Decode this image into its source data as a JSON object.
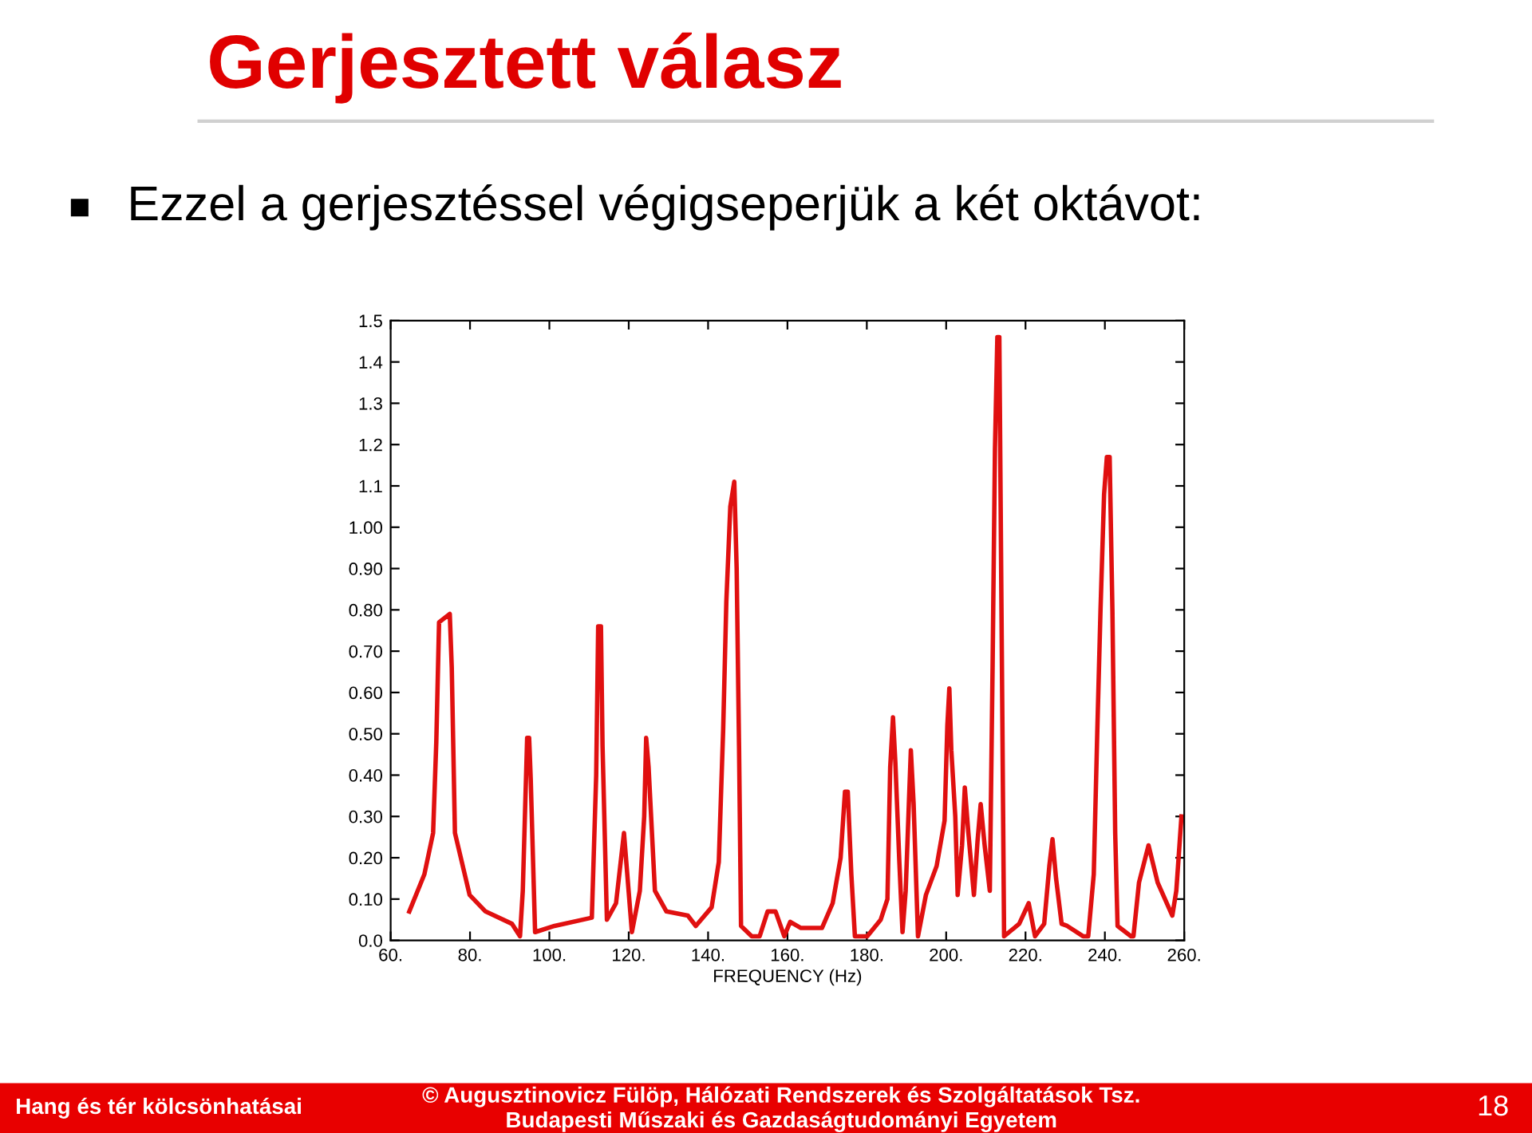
{
  "chart_data": {
    "type": "line",
    "title": "Gerjesztett válasz",
    "subtitle": "Ezzel a gerjesztéssel végigseperjük a két oktávot:",
    "xlabel": "FREQUENCY (Hz)",
    "annotations": [
      "Hang és tér kölcsönhatásai",
      "© Augusztinovicz Fülöp, Hálózati Rendszerek és Szolgáltatások Tsz.",
      "Budapesti Műszaki és Gazdaságtudományi Egyetem",
      "18"
    ],
    "series": [
      {
        "color": "#e01010",
        "x": [
          64.7,
          68.5,
          70.7,
          71.5,
          72.2,
          74.9,
          75.4,
          76.2,
          79.9,
          83.9,
          90.6,
          92.6,
          93.3,
          94.4,
          94.9,
          95.3,
          96.4,
          101.3,
          110.7,
          111.8,
          112.3,
          113.0,
          113.4,
          114.5,
          116.8,
          118.8,
          120.8,
          122.8,
          123.9,
          124.4,
          125.0,
          126.6,
          129.5,
          134.9,
          136.9,
          140.9,
          142.7,
          143.8,
          144.6,
          145.6,
          146.6,
          147.2,
          147.8,
          148.3,
          151.0,
          153.0,
          155.0,
          157.0,
          159.2,
          160.7,
          163.4,
          168.7,
          171.4,
          173.4,
          174.5,
          175.2,
          176.1,
          177.0,
          180.1,
          183.5,
          185.2,
          185.9,
          186.6,
          187.2,
          188.2,
          189.0,
          189.8,
          190.6,
          191.1,
          191.8,
          192.9,
          194.9,
          197.6,
          199.6,
          200.3,
          200.8,
          201.3,
          202.3,
          202.9,
          204.0,
          204.7,
          205.6,
          207.0,
          207.9,
          208.7,
          209.7,
          211.0,
          211.7,
          212.3,
          212.9,
          213.4,
          214.0,
          214.6,
          218.4,
          220.8,
          222.4,
          224.7,
          226.0,
          226.8,
          227.7,
          229.1,
          230.5,
          234.5,
          235.8,
          237.2,
          238.1,
          238.9,
          239.8,
          240.5,
          241.2,
          241.9,
          242.6,
          243.2,
          246.6,
          247.2,
          248.6,
          251.0,
          253.3,
          257.0,
          258.0,
          259.3
        ],
        "values": [
          0.07,
          0.16,
          0.26,
          0.48,
          0.77,
          0.79,
          0.66,
          0.26,
          0.11,
          0.07,
          0.04,
          0.01,
          0.12,
          0.49,
          0.49,
          0.39,
          0.02,
          0.035,
          0.055,
          0.4,
          0.76,
          0.76,
          0.47,
          0.05,
          0.09,
          0.26,
          0.02,
          0.12,
          0.3,
          0.49,
          0.42,
          0.12,
          0.07,
          0.06,
          0.035,
          0.08,
          0.19,
          0.51,
          0.82,
          1.05,
          1.11,
          0.9,
          0.47,
          0.035,
          0.01,
          0.01,
          0.07,
          0.07,
          0.01,
          0.045,
          0.03,
          0.03,
          0.09,
          0.2,
          0.36,
          0.36,
          0.16,
          0.01,
          0.01,
          0.05,
          0.1,
          0.42,
          0.54,
          0.43,
          0.19,
          0.02,
          0.12,
          0.33,
          0.46,
          0.33,
          0.01,
          0.11,
          0.18,
          0.29,
          0.52,
          0.61,
          0.46,
          0.3,
          0.11,
          0.23,
          0.37,
          0.26,
          0.11,
          0.24,
          0.33,
          0.23,
          0.12,
          0.66,
          1.19,
          1.46,
          1.46,
          0.73,
          0.01,
          0.04,
          0.09,
          0.01,
          0.04,
          0.18,
          0.245,
          0.15,
          0.04,
          0.035,
          0.01,
          0.01,
          0.16,
          0.51,
          0.8,
          1.08,
          1.17,
          1.17,
          0.8,
          0.26,
          0.035,
          0.01,
          0.01,
          0.14,
          0.23,
          0.14,
          0.06,
          0.12,
          0.3
        ]
      }
    ],
    "xlim": [
      60,
      260
    ],
    "xticks": [
      {
        "value": 60,
        "label": "60."
      },
      {
        "value": 80,
        "label": "80."
      },
      {
        "value": 100,
        "label": "100."
      },
      {
        "value": 120,
        "label": "120."
      },
      {
        "value": 140,
        "label": "140."
      },
      {
        "value": 160,
        "label": "160."
      },
      {
        "value": 180,
        "label": "180."
      },
      {
        "value": 200,
        "label": "200."
      },
      {
        "value": 220,
        "label": "220."
      },
      {
        "value": 240,
        "label": "240."
      },
      {
        "value": 260,
        "label": "260."
      }
    ],
    "ylim": [
      0,
      1.5
    ],
    "yticks": [
      {
        "value": 0,
        "label": "0.0"
      },
      {
        "value": 0.1,
        "label": "0.10"
      },
      {
        "value": 0.2,
        "label": "0.20"
      },
      {
        "value": 0.3,
        "label": "0.30"
      },
      {
        "value": 0.4,
        "label": "0.40"
      },
      {
        "value": 0.5,
        "label": "0.50"
      },
      {
        "value": 0.6,
        "label": "0.60"
      },
      {
        "value": 0.7,
        "label": "0.70"
      },
      {
        "value": 0.8,
        "label": "0.80"
      },
      {
        "value": 0.9,
        "label": "0.90"
      },
      {
        "value": 1.0,
        "label": "1.00"
      },
      {
        "value": 1.1,
        "label": "1.1"
      },
      {
        "value": 1.2,
        "label": "1.2"
      },
      {
        "value": 1.3,
        "label": "1.3"
      },
      {
        "value": 1.4,
        "label": "1.4"
      },
      {
        "value": 1.5,
        "label": "1.5"
      }
    ],
    "grid": false,
    "marker": "none",
    "line_style": "solid"
  }
}
